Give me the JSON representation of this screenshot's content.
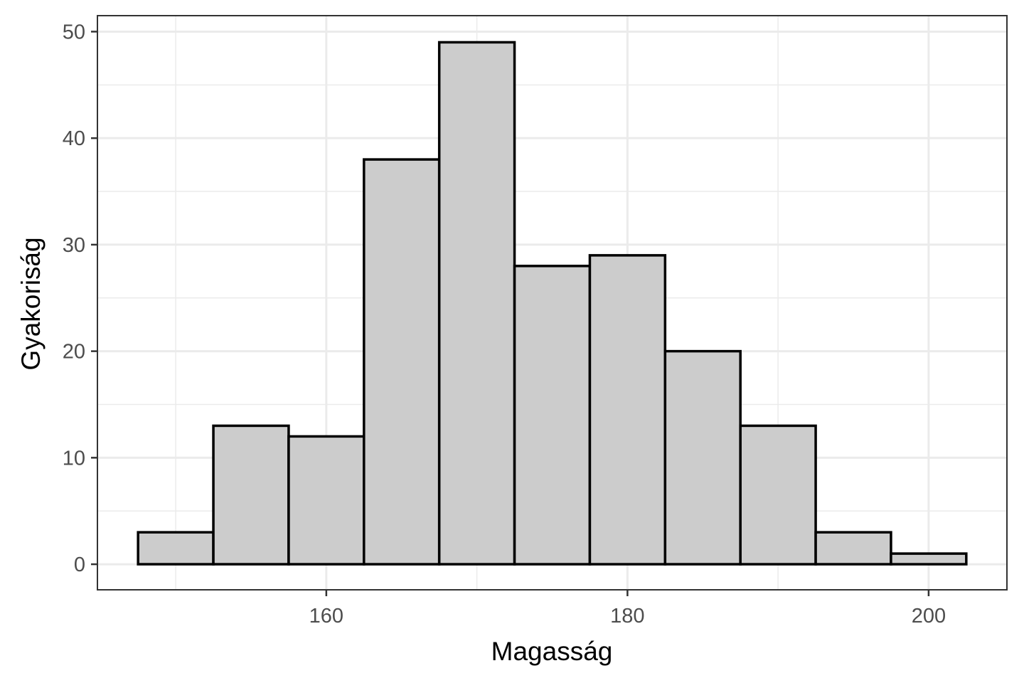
{
  "chart_data": {
    "type": "bar",
    "subtype": "histogram",
    "bins": [
      {
        "x_start": 147.5,
        "x_end": 152.5,
        "count": 3
      },
      {
        "x_start": 152.5,
        "x_end": 157.5,
        "count": 13
      },
      {
        "x_start": 157.5,
        "x_end": 162.5,
        "count": 12
      },
      {
        "x_start": 162.5,
        "x_end": 167.5,
        "count": 38
      },
      {
        "x_start": 167.5,
        "x_end": 172.5,
        "count": 49
      },
      {
        "x_start": 172.5,
        "x_end": 177.5,
        "count": 28
      },
      {
        "x_start": 177.5,
        "x_end": 182.5,
        "count": 29
      },
      {
        "x_start": 182.5,
        "x_end": 187.5,
        "count": 20
      },
      {
        "x_start": 187.5,
        "x_end": 192.5,
        "count": 13
      },
      {
        "x_start": 192.5,
        "x_end": 197.5,
        "count": 3
      },
      {
        "x_start": 197.5,
        "x_end": 202.5,
        "count": 1
      }
    ],
    "xlabel": "Magasság",
    "ylabel": "Gyakoriság",
    "xlim": [
      144.8,
      205.2
    ],
    "ylim": [
      -2.4,
      51.5
    ],
    "x_ticks": [
      160,
      180,
      200
    ],
    "y_ticks": [
      0,
      10,
      20,
      30,
      40,
      50
    ],
    "x_minor_ticks": [
      150,
      170,
      190
    ],
    "y_minor_ticks": [
      5,
      15,
      25,
      35,
      45
    ],
    "grid": true,
    "bar_fill": "#cccccc",
    "bar_outline": "#000000"
  }
}
